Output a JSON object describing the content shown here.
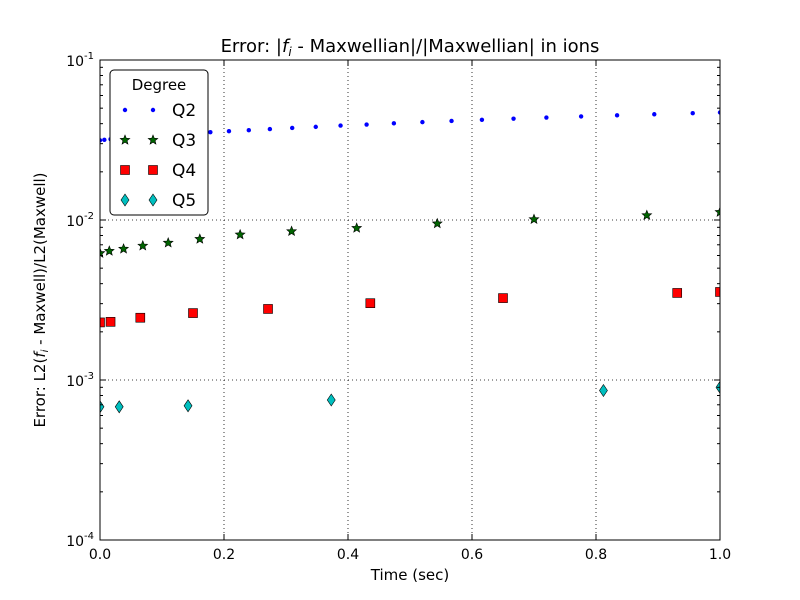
{
  "chart_data": {
    "type": "scatter",
    "title": "Error: |f_i - Maxwellian|/|Maxwellian| in ions",
    "title_parts": {
      "prefix": "Error: |",
      "f": "f",
      "sub": "i",
      "suffix": " - Maxwellian|/|Maxwellian| in ions"
    },
    "xlabel": "Time (sec)",
    "ylabel": "Error: L2(f_i - Maxwell)/L2(Maxwell)",
    "ylabel_parts": {
      "prefix": "Error: L2(",
      "f": "f",
      "sub": "i",
      "suffix": " - Maxwell)/L2(Maxwell)"
    },
    "xlim": [
      0.0,
      1.0
    ],
    "ylim": [
      0.0001,
      0.1
    ],
    "yscale": "log",
    "grid": true,
    "x_ticks": [
      {
        "value": 0.0,
        "label": "0.0"
      },
      {
        "value": 0.2,
        "label": "0.2"
      },
      {
        "value": 0.4,
        "label": "0.4"
      },
      {
        "value": 0.6,
        "label": "0.6"
      },
      {
        "value": 0.8,
        "label": "0.8"
      },
      {
        "value": 1.0,
        "label": "1.0"
      }
    ],
    "y_ticks": [
      {
        "value": 0.0001,
        "base": "10",
        "exp": "-4"
      },
      {
        "value": 0.001,
        "base": "10",
        "exp": "-3"
      },
      {
        "value": 0.01,
        "base": "10",
        "exp": "-2"
      },
      {
        "value": 0.1,
        "base": "10",
        "exp": "-1"
      }
    ],
    "legend": {
      "title": "Degree",
      "placement": "top-left"
    },
    "series": [
      {
        "name": "Q2",
        "marker": "dot",
        "color": "#0000ff",
        "x": [
          0.0,
          0.007,
          0.017,
          0.029,
          0.044,
          0.061,
          0.08,
          0.101,
          0.125,
          0.151,
          0.178,
          0.208,
          0.24,
          0.274,
          0.31,
          0.348,
          0.388,
          0.43,
          0.474,
          0.52,
          0.567,
          0.616,
          0.667,
          0.72,
          0.776,
          0.834,
          0.894,
          0.956,
          1.0
        ],
        "y": [
          0.0315,
          0.0317,
          0.032,
          0.0323,
          0.0327,
          0.0331,
          0.0335,
          0.034,
          0.0344,
          0.0349,
          0.0354,
          0.0359,
          0.0364,
          0.037,
          0.0376,
          0.0382,
          0.0389,
          0.0395,
          0.0402,
          0.0409,
          0.0416,
          0.0423,
          0.043,
          0.0437,
          0.0444,
          0.0451,
          0.0458,
          0.0465,
          0.047
        ]
      },
      {
        "name": "Q3",
        "marker": "star",
        "color": "#006400",
        "x": [
          0.0,
          0.015,
          0.038,
          0.069,
          0.11,
          0.161,
          0.226,
          0.309,
          0.414,
          0.544,
          0.7,
          0.882,
          1.0
        ],
        "y": [
          0.0062,
          0.0064,
          0.0066,
          0.0069,
          0.0072,
          0.0076,
          0.0081,
          0.0085,
          0.0089,
          0.0095,
          0.0101,
          0.0107,
          0.0112
        ]
      },
      {
        "name": "Q4",
        "marker": "square",
        "color": "#ff0000",
        "x": [
          0.0,
          0.017,
          0.065,
          0.15,
          0.271,
          0.436,
          0.65,
          0.931,
          1.0
        ],
        "y": [
          0.00229,
          0.00231,
          0.00245,
          0.00262,
          0.00278,
          0.00302,
          0.00325,
          0.0035,
          0.00355
        ]
      },
      {
        "name": "Q5",
        "marker": "diamond",
        "color": "#00bfbf",
        "x": [
          0.0,
          0.031,
          0.142,
          0.373,
          0.812,
          1.0
        ],
        "y": [
          0.00068,
          0.00068,
          0.00069,
          0.00075,
          0.00086,
          0.0009
        ]
      }
    ]
  }
}
